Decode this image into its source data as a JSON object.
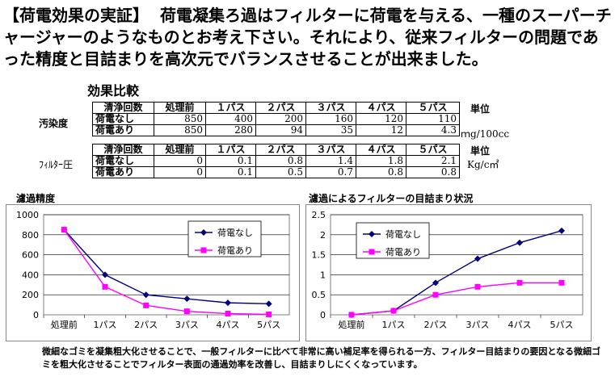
{
  "intro": {
    "lead": "【荷電効果の実証】",
    "text": "荷電凝集ろ過はフィルターに荷電を与える、一種のスーパーチャージャーのようなものとお考え下さい。それにより、従来フィルターの問題であった精度と目詰まりを高次元でバランスさせることが出来ました。"
  },
  "section_title": "効果比較",
  "tables": [
    {
      "row_label": "汚染度",
      "unit": "ｍg/100cc",
      "headers": [
        "清浄回数",
        "処理前",
        "１パス",
        "２パス",
        "３パス",
        "４パス",
        "５パス"
      ],
      "unit_header": "単位",
      "rows": [
        {
          "label": "荷電なし",
          "values": [
            "850",
            "400",
            "200",
            "160",
            "120",
            "110"
          ]
        },
        {
          "label": "荷電あり",
          "values": [
            "850",
            "280",
            "94",
            "35",
            "12",
            "4.3"
          ]
        }
      ]
    },
    {
      "row_label": "ﾌｨﾙﾀｰ圧",
      "unit": "Kg/c㎡",
      "headers": [
        "清浄回数",
        "処理前",
        "１パス",
        "２パス",
        "３パス",
        "４パス",
        "５パス"
      ],
      "unit_header": "単位",
      "rows": [
        {
          "label": "荷電なし",
          "values": [
            "0",
            "0.1",
            "0.8",
            "1.4",
            "1.8",
            "2.1"
          ]
        },
        {
          "label": "荷電あり",
          "values": [
            "0",
            "0.1",
            "0.5",
            "0.7",
            "0.8",
            "0.8"
          ]
        }
      ]
    }
  ],
  "chart_data": [
    {
      "type": "line",
      "title": "濾過精度",
      "categories": [
        "処理前",
        "1パス",
        "2パス",
        "3パス",
        "4パス",
        "5パス"
      ],
      "ylim": [
        0,
        1000
      ],
      "yticks": [
        "0",
        "200",
        "400",
        "600",
        "800",
        "1000"
      ],
      "legend_position": "inside-right",
      "series": [
        {
          "name": "荷電なし",
          "color": "#000080",
          "marker": "diamond",
          "values": [
            850,
            400,
            200,
            160,
            120,
            110
          ]
        },
        {
          "name": "荷電あり",
          "color": "#ff00ff",
          "marker": "square",
          "values": [
            850,
            280,
            94,
            35,
            12,
            4.3
          ]
        }
      ]
    },
    {
      "type": "line",
      "title": "濾過によるフィルターの目詰まり状況",
      "categories": [
        "処理前",
        "1パス",
        "2パス",
        "3パス",
        "4パス",
        "5パス"
      ],
      "ylim": [
        0,
        2.5
      ],
      "yticks": [
        "0",
        "0.5",
        "1",
        "1.5",
        "2",
        "2.5"
      ],
      "legend_position": "top-left",
      "series": [
        {
          "name": "荷電なし",
          "color": "#000080",
          "marker": "diamond",
          "values": [
            0,
            0.1,
            0.8,
            1.4,
            1.8,
            2.1
          ]
        },
        {
          "name": "荷電あり",
          "color": "#ff00ff",
          "marker": "square",
          "values": [
            0,
            0.1,
            0.5,
            0.7,
            0.8,
            0.8
          ]
        }
      ]
    }
  ],
  "footnote": "微細なゴミを凝集粗大化させることで、一般フィルターに比べて非常に高い補足率を得られる一方、フィルター目詰まりの要因となる微細ゴミを粗大化させることでフィルター表面の通過効率を改善し、目詰まりしにくくなっています。"
}
